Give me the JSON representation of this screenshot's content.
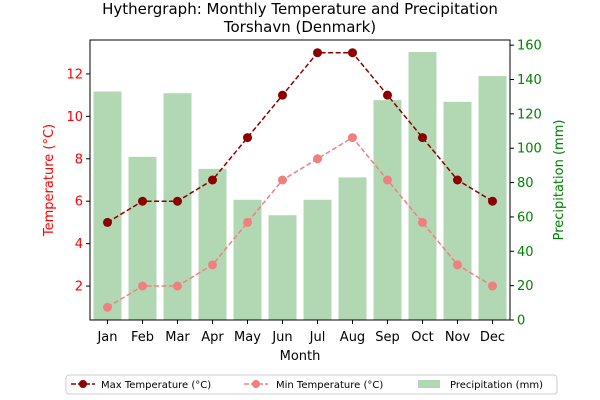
{
  "chart_data": {
    "type": "bar+line",
    "title_line1": "Hythergraph: Monthly Temperature and Precipitation",
    "title_line2": "Torshavn (Denmark)",
    "xlabel": "Month",
    "ylabel_left": "Temperature (°C)",
    "ylabel_right": "Precipitation (mm)",
    "categories": [
      "Jan",
      "Feb",
      "Mar",
      "Apr",
      "May",
      "Jun",
      "Jul",
      "Aug",
      "Sep",
      "Oct",
      "Nov",
      "Dec"
    ],
    "left_axis": {
      "ylim": [
        0.4,
        13.6
      ],
      "ticks": [
        2,
        4,
        6,
        8,
        10,
        12
      ]
    },
    "right_axis": {
      "ylim": [
        0,
        163
      ],
      "ticks": [
        0,
        20,
        40,
        60,
        80,
        100,
        120,
        140,
        160
      ]
    },
    "series": [
      {
        "name": "Max Temperature (°C)",
        "axis": "left",
        "kind": "line",
        "values": [
          5,
          6,
          6,
          7,
          9,
          11,
          13,
          13,
          11,
          9,
          7,
          6
        ],
        "color": "#8b0000"
      },
      {
        "name": "Min Temperature (°C)",
        "axis": "left",
        "kind": "line",
        "values": [
          1,
          2,
          2,
          3,
          5,
          7,
          8,
          9,
          7,
          5,
          3,
          2
        ],
        "color": "#f08080"
      },
      {
        "name": "Precipitation (mm)",
        "axis": "right",
        "kind": "bar",
        "values": [
          133,
          95,
          132,
          88,
          70,
          61,
          70,
          83,
          128,
          156,
          127,
          142
        ],
        "color": "#b1d8b3"
      }
    ],
    "left_color": "#ff0000",
    "right_color": "#008000",
    "legend_position": "bottom"
  }
}
